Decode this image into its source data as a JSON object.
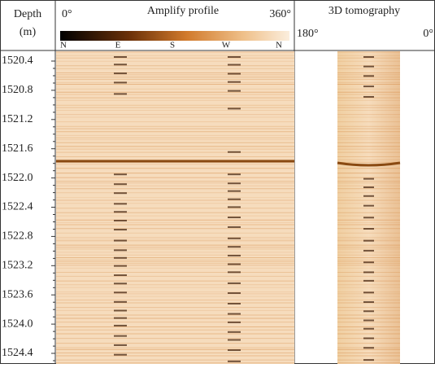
{
  "header": {
    "depth_title": "Depth",
    "depth_unit": "(m)",
    "profile": {
      "title": "Amplify profile",
      "start": "0°",
      "end": "360°",
      "directions": [
        "N",
        "E",
        "S",
        "W",
        "N"
      ]
    },
    "tomography": {
      "title": "3D tomography",
      "left": "180°",
      "right": "0°"
    }
  },
  "depth_ticks": [
    "1520.4",
    "1520.8",
    "1521.2",
    "1521.6",
    "1522.0",
    "1522.4",
    "1522.8",
    "1523.2",
    "1523.6",
    "1524.0",
    "1524.4"
  ]
}
